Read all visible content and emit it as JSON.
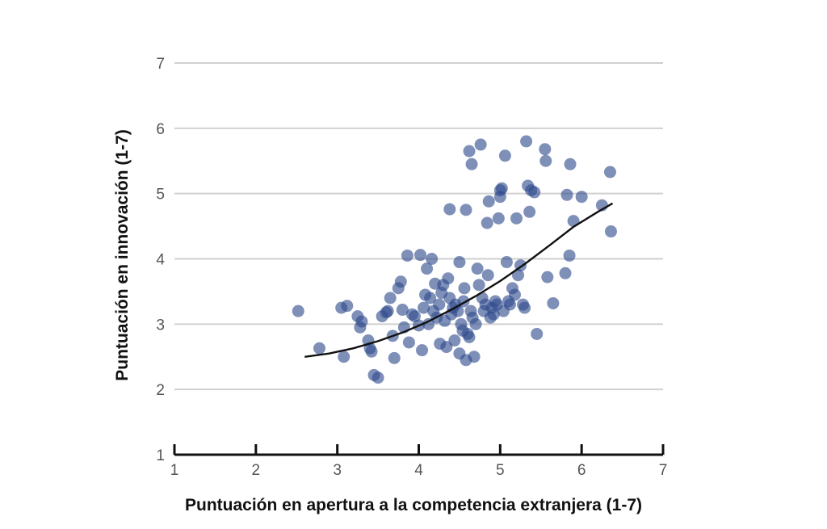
{
  "chart_data": {
    "type": "scatter",
    "title": "",
    "xlabel": "Puntuación en apertura a la competencia extranjera (1-7)",
    "ylabel": "Puntuación en innovación (1-7)",
    "xlim": [
      1,
      7
    ],
    "ylim": [
      1,
      7
    ],
    "xticks": [
      "1",
      "2",
      "3",
      "4",
      "5",
      "6",
      "7"
    ],
    "yticks": [
      "1",
      "2",
      "3",
      "4",
      "5",
      "6",
      "7"
    ],
    "grid": "horizontal",
    "legend": "none",
    "colors": {
      "point": "#2e4a8c",
      "trend": "#111111",
      "grid": "#d0d0d0",
      "axis": "#111111"
    },
    "series": [
      {
        "marker": "circle",
        "points": [
          [
            2.52,
            3.2
          ],
          [
            2.78,
            2.63
          ],
          [
            3.08,
            2.5
          ],
          [
            3.05,
            3.25
          ],
          [
            3.12,
            3.28
          ],
          [
            3.28,
            2.95
          ],
          [
            3.3,
            3.04
          ],
          [
            3.25,
            3.12
          ],
          [
            3.38,
            2.75
          ],
          [
            3.4,
            2.63
          ],
          [
            3.42,
            2.58
          ],
          [
            3.45,
            2.22
          ],
          [
            3.5,
            2.18
          ],
          [
            3.55,
            3.12
          ],
          [
            3.6,
            3.18
          ],
          [
            3.62,
            3.2
          ],
          [
            3.65,
            3.4
          ],
          [
            3.68,
            2.82
          ],
          [
            3.7,
            2.48
          ],
          [
            3.75,
            3.55
          ],
          [
            3.78,
            3.65
          ],
          [
            3.8,
            3.22
          ],
          [
            3.82,
            2.95
          ],
          [
            3.86,
            4.05
          ],
          [
            3.88,
            2.72
          ],
          [
            3.92,
            3.15
          ],
          [
            3.95,
            3.12
          ],
          [
            4.0,
            2.98
          ],
          [
            4.02,
            4.06
          ],
          [
            4.04,
            2.6
          ],
          [
            4.06,
            3.25
          ],
          [
            4.08,
            3.45
          ],
          [
            4.1,
            3.85
          ],
          [
            4.12,
            3.0
          ],
          [
            4.14,
            3.4
          ],
          [
            4.16,
            4.0
          ],
          [
            4.18,
            3.2
          ],
          [
            4.2,
            3.62
          ],
          [
            4.22,
            3.1
          ],
          [
            4.25,
            3.3
          ],
          [
            4.26,
            2.7
          ],
          [
            4.28,
            3.48
          ],
          [
            4.3,
            3.6
          ],
          [
            4.32,
            3.05
          ],
          [
            4.34,
            2.65
          ],
          [
            4.36,
            3.7
          ],
          [
            4.38,
            3.4
          ],
          [
            4.38,
            4.76
          ],
          [
            4.4,
            3.15
          ],
          [
            4.42,
            3.25
          ],
          [
            4.44,
            2.75
          ],
          [
            4.45,
            3.3
          ],
          [
            4.48,
            3.2
          ],
          [
            4.5,
            3.95
          ],
          [
            4.5,
            2.55
          ],
          [
            4.52,
            3.0
          ],
          [
            4.54,
            2.9
          ],
          [
            4.55,
            3.35
          ],
          [
            4.56,
            3.55
          ],
          [
            4.58,
            2.45
          ],
          [
            4.58,
            4.75
          ],
          [
            4.6,
            2.85
          ],
          [
            4.62,
            5.65
          ],
          [
            4.62,
            2.8
          ],
          [
            4.64,
            3.2
          ],
          [
            4.65,
            5.45
          ],
          [
            4.66,
            3.1
          ],
          [
            4.68,
            2.5
          ],
          [
            4.7,
            3.0
          ],
          [
            4.72,
            3.85
          ],
          [
            4.74,
            3.6
          ],
          [
            4.76,
            5.75
          ],
          [
            4.78,
            3.4
          ],
          [
            4.8,
            3.2
          ],
          [
            4.82,
            3.3
          ],
          [
            4.84,
            4.55
          ],
          [
            4.85,
            3.75
          ],
          [
            4.86,
            4.88
          ],
          [
            4.88,
            3.1
          ],
          [
            4.9,
            3.25
          ],
          [
            4.92,
            3.15
          ],
          [
            4.94,
            3.35
          ],
          [
            4.96,
            3.3
          ],
          [
            4.98,
            4.62
          ],
          [
            5.0,
            4.95
          ],
          [
            5.0,
            5.05
          ],
          [
            5.02,
            5.08
          ],
          [
            5.04,
            3.2
          ],
          [
            5.06,
            5.58
          ],
          [
            5.08,
            3.95
          ],
          [
            5.1,
            3.35
          ],
          [
            5.12,
            3.3
          ],
          [
            5.15,
            3.55
          ],
          [
            5.18,
            3.45
          ],
          [
            5.2,
            4.62
          ],
          [
            5.22,
            3.75
          ],
          [
            5.25,
            3.9
          ],
          [
            5.28,
            3.3
          ],
          [
            5.3,
            3.25
          ],
          [
            5.32,
            5.8
          ],
          [
            5.34,
            5.12
          ],
          [
            5.36,
            4.72
          ],
          [
            5.38,
            5.05
          ],
          [
            5.42,
            5.02
          ],
          [
            5.45,
            2.85
          ],
          [
            5.55,
            5.68
          ],
          [
            5.56,
            5.5
          ],
          [
            5.58,
            3.72
          ],
          [
            5.65,
            3.32
          ],
          [
            5.8,
            3.78
          ],
          [
            5.82,
            4.98
          ],
          [
            5.85,
            4.05
          ],
          [
            5.86,
            5.45
          ],
          [
            5.9,
            4.58
          ],
          [
            6.0,
            4.95
          ],
          [
            6.25,
            4.82
          ],
          [
            6.35,
            5.33
          ],
          [
            6.36,
            4.42
          ]
        ]
      }
    ],
    "trendline": {
      "type": "quadratic",
      "x": [
        2.6,
        2.9,
        3.2,
        3.5,
        3.8,
        4.1,
        4.4,
        4.7,
        5.0,
        5.3,
        5.6,
        5.9,
        6.2,
        6.38
      ],
      "y": [
        2.5,
        2.55,
        2.63,
        2.74,
        2.87,
        3.03,
        3.22,
        3.43,
        3.66,
        3.92,
        4.2,
        4.49,
        4.72,
        4.85
      ]
    }
  }
}
